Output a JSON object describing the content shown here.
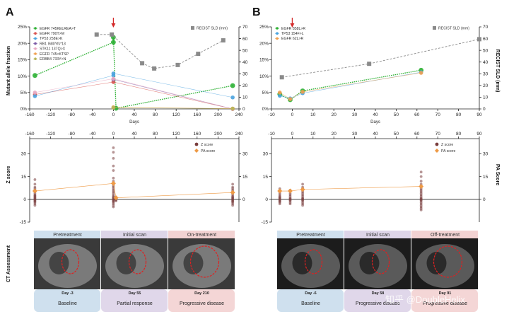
{
  "panels": {
    "a": "A",
    "b": "B"
  },
  "labels": {
    "maf": "Mutant allele fraction",
    "recist": "RECIST SLD (mm)",
    "zscore": "Z score",
    "pascore": "PA Score",
    "days": "Days",
    "ct": "CT Assessment",
    "legend_recist": "RECIST SLD (mm)",
    "legend_z": "Z score",
    "legend_pa": "PA score"
  },
  "watermark": "知乎 @DoubleHelix",
  "colors": {
    "green": "#2eb135",
    "gray": "#8a8a8a",
    "blue": "#4aa3df",
    "red": "#d9534f",
    "purple": "#7b5aa6",
    "pink": "#e7a8c2",
    "olive": "#b6b55a",
    "orange": "#f0a050",
    "dot": "#7a3e3e",
    "pa": "#ee9a45"
  },
  "chart_data": [
    {
      "type": "line",
      "panel": "A-top",
      "xlabel": "Days",
      "xlim": [
        -160,
        240
      ],
      "xticks": [
        -160,
        -120,
        -80,
        -40,
        0,
        40,
        80,
        120,
        160,
        200,
        240
      ],
      "ylabel": "Mutant allele fraction",
      "ylim": [
        0,
        25
      ],
      "yticks": [
        "0%",
        "5%",
        "10%",
        "15%",
        "20%",
        "25%"
      ],
      "y2label": "RECIST SLD (mm)",
      "y2lim": [
        0,
        70
      ],
      "y2ticks": [
        0,
        10,
        20,
        30,
        40,
        50,
        60,
        70
      ],
      "legend_entries": [
        {
          "label": "EGFR 745KELREA>T",
          "color": "#2eb135"
        },
        {
          "label": "EGFR 790T>M",
          "color": "#d9534f"
        },
        {
          "label": "TP53 258E>K",
          "color": "#4aa3df"
        },
        {
          "label": "RB1 I680Yfs*13",
          "color": "#7b5aa6"
        },
        {
          "label": "STK11 137Q>X",
          "color": "#e7a8c2"
        },
        {
          "label": "EGFR 745>KTSP",
          "color": "#f0a050"
        },
        {
          "label": "ERBB4 733Y>N",
          "color": "#b6b55a"
        }
      ],
      "series": [
        {
          "name": "EGFR 745KELREA>T",
          "x": [
            -150,
            0,
            0,
            5,
            228
          ],
          "y": [
            10.2,
            20.3,
            21.8,
            0.2,
            7.1
          ]
        },
        {
          "name": "EGFR 790T>M",
          "x": [
            -150,
            0,
            228
          ],
          "y": [
            4.4,
            8.2,
            0
          ]
        },
        {
          "name": "TP53 258E>K",
          "x": [
            -150,
            0,
            0,
            228
          ],
          "y": [
            3.9,
            10.2,
            10.8,
            3.5
          ]
        },
        {
          "name": "RB1 I680Yfs*13",
          "x": [
            0,
            228
          ],
          "y": [
            9.0,
            0
          ]
        },
        {
          "name": "STK11 137Q>X",
          "x": [
            -150,
            0,
            228
          ],
          "y": [
            5.0,
            9.2,
            0
          ]
        },
        {
          "name": "EGFR 745>KTSP",
          "x": [
            0,
            228
          ],
          "y": [
            0.5,
            0.1
          ]
        },
        {
          "name": "ERBB4 733Y>N",
          "x": [
            0,
            228
          ],
          "y": [
            0.4,
            0.1
          ]
        },
        {
          "name": "RECIST SLD (mm)",
          "axis": "y2",
          "x": [
            -32,
            -3,
            55,
            78,
            123,
            162,
            210
          ],
          "y": [
            63.5,
            63.5,
            39,
            34.5,
            37.5,
            47,
            58.5
          ]
        }
      ],
      "annotations": [
        "red arrow at day 0"
      ]
    },
    {
      "type": "scatter",
      "panel": "A-bottom",
      "xlim": [
        -160,
        240
      ],
      "xticks": [
        -160,
        -120,
        -80,
        -40,
        0,
        40,
        80,
        120,
        160,
        200,
        240
      ],
      "ylabel": "Z score",
      "ylim": [
        -15,
        40
      ],
      "yticks": [
        -15,
        0,
        15,
        30
      ],
      "y2label": "PA Score",
      "y2lim": [
        -15,
        40
      ],
      "y2ticks": [
        0,
        15,
        30
      ],
      "legend_entries": [
        "Z score",
        "PA score"
      ],
      "series": [
        {
          "name": "Z score",
          "groups": [
            {
              "x": -150,
              "y": [
                13,
                10,
                8,
                7,
                6,
                5,
                4,
                3,
                2.5,
                2,
                1.5,
                1,
                0.5,
                0,
                -0.5,
                -1,
                -1.5,
                -2,
                -3,
                -4
              ]
            },
            {
              "x": 0,
              "y": [
                34,
                31,
                27,
                22,
                19,
                14,
                12,
                10,
                9,
                8,
                7,
                6,
                5,
                4,
                3,
                2,
                1.5,
                1,
                0.5,
                0,
                -0.5,
                -1,
                -1.5,
                -2,
                -3,
                -4,
                -5
              ]
            },
            {
              "x": 5,
              "y": [
                1.5,
                1,
                0.5,
                0,
                -0.5,
                -1
              ]
            },
            {
              "x": 228,
              "y": [
                10,
                8,
                7,
                6,
                5,
                4,
                3,
                2,
                1.5,
                1,
                0.5,
                0,
                -0.5,
                -1,
                -1.5,
                -2,
                -3,
                -4
              ]
            }
          ]
        },
        {
          "name": "PA score",
          "x": [
            -150,
            0,
            5,
            228
          ],
          "y": [
            5.5,
            10.5,
            1,
            4.5
          ]
        }
      ]
    },
    {
      "type": "line",
      "panel": "B-top",
      "xlabel": "Days",
      "xlim": [
        -10,
        90
      ],
      "xticks": [
        -10,
        0,
        10,
        20,
        30,
        40,
        50,
        60,
        70,
        80,
        90
      ],
      "ylabel": "",
      "ylim": [
        0,
        25
      ],
      "yticks": [
        "0%",
        "5%",
        "10%",
        "15%",
        "20%",
        "25%"
      ],
      "y2label": "RECIST SLD (mm)",
      "y2lim": [
        0,
        70
      ],
      "y2ticks": [
        0,
        10,
        20,
        30,
        40,
        50,
        60,
        70
      ],
      "legend_entries": [
        {
          "label": "EGFR 858L>R",
          "color": "#2eb135"
        },
        {
          "label": "TP53 154F>L",
          "color": "#4aa3df"
        },
        {
          "label": "EGFR 62L>R",
          "color": "#f0a050"
        }
      ],
      "series": [
        {
          "name": "EGFR 858L>R",
          "x": [
            -6,
            -1,
            5,
            62
          ],
          "y": [
            4.5,
            2.8,
            5.5,
            11.8
          ]
        },
        {
          "name": "TP53 154F>L",
          "x": [
            -6,
            -1,
            5,
            62
          ],
          "y": [
            4.0,
            3.2,
            4.8,
            11.2
          ]
        },
        {
          "name": "EGFR 62L>R",
          "x": [
            -6,
            -1,
            5,
            62
          ],
          "y": [
            5.0,
            3.0,
            5.2,
            11.0
          ]
        },
        {
          "name": "RECIST SLD (mm)",
          "axis": "y2",
          "x": [
            -5,
            37,
            90
          ],
          "y": [
            27,
            38.5,
            59.5
          ]
        }
      ],
      "annotations": [
        "red arrow at day 0"
      ]
    },
    {
      "type": "scatter",
      "panel": "B-bottom",
      "xlim": [
        -10,
        90
      ],
      "xticks": [
        -10,
        0,
        10,
        20,
        30,
        40,
        50,
        60,
        70,
        80,
        90
      ],
      "ylabel": "",
      "ylim": [
        -15,
        40
      ],
      "yticks": [
        -15,
        0,
        15,
        30
      ],
      "y2label": "PA Score",
      "y2lim": [
        -15,
        40
      ],
      "y2ticks": [
        0,
        15,
        30
      ],
      "legend_entries": [
        "Z score",
        "PA score"
      ],
      "series": [
        {
          "name": "Z score",
          "groups": [
            {
              "x": -6,
              "y": [
                7,
                5,
                4,
                3,
                2,
                1.5,
                1,
                0.5,
                0,
                -0.5,
                -1,
                -1.5,
                -2,
                -3
              ]
            },
            {
              "x": -1,
              "y": [
                6,
                4,
                3,
                2,
                1,
                0.5,
                0,
                -0.5,
                -1,
                -2,
                -3
              ]
            },
            {
              "x": 5,
              "y": [
                10,
                8,
                7,
                6,
                5,
                4,
                3,
                2,
                1,
                0.5,
                0,
                -0.5,
                -1,
                -2,
                -3,
                -4
              ]
            },
            {
              "x": 62,
              "y": [
                18,
                15,
                12,
                10,
                8,
                7,
                6,
                5,
                4,
                3,
                2,
                1,
                0.5,
                0,
                -0.5,
                -1,
                -2,
                -3,
                -4,
                -5,
                -6,
                -7
              ]
            }
          ]
        },
        {
          "name": "PA score",
          "x": [
            -6,
            -1,
            5,
            62
          ],
          "y": [
            5.5,
            5.5,
            6.5,
            8.5
          ]
        }
      ]
    }
  ],
  "ct": {
    "a": {
      "titles": [
        "Pretreatment",
        "Initial scan",
        "On-treatment"
      ],
      "days": [
        "Day -3",
        "Day 55",
        "Day 210"
      ],
      "results": [
        "Baseline",
        "Partial response",
        "Progressive disease"
      ]
    },
    "b": {
      "titles": [
        "Pretreatment",
        "Initial scan",
        "Off-treatment"
      ],
      "days": [
        "Day -6",
        "Day 58",
        "Day 91"
      ],
      "results": [
        "Baseline",
        "Progressive disease",
        "Progressive disease"
      ]
    }
  }
}
